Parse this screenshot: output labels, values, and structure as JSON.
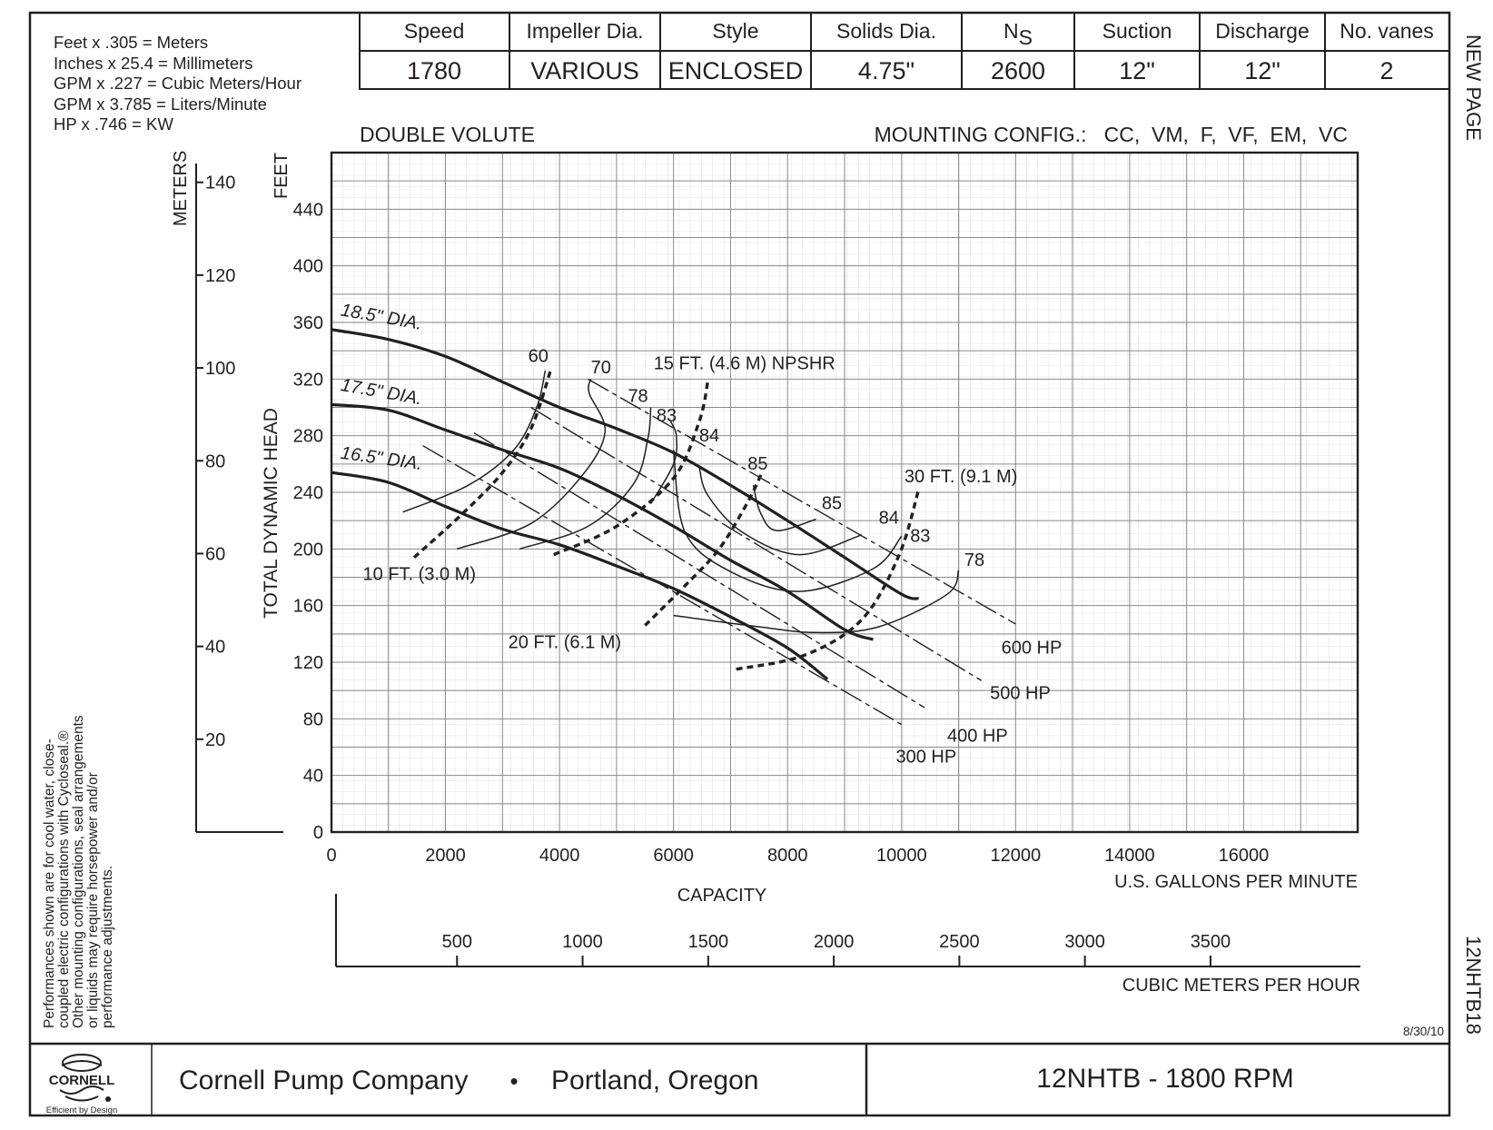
{
  "conversions": [
    "Feet x .305 = Meters",
    "Inches x 25.4 = Millimeters",
    "GPM x .227 = Cubic Meters/Hour",
    "GPM x 3.785 = Liters/Minute",
    "HP x .746 = KW"
  ],
  "spec_table": {
    "headers": [
      "Speed",
      "Impeller Dia.",
      "Style",
      "Solids Dia.",
      "N",
      "Suction",
      "Discharge",
      "No. vanes"
    ],
    "ns_subscript": "S",
    "values": [
      "1780",
      "VARIOUS",
      "ENCLOSED",
      "4.75\"",
      "2600",
      "12\"",
      "12\"",
      "2"
    ]
  },
  "side_label_top": "NEW PAGE",
  "side_label_bottom": "12NHTB18",
  "volute_label": "DOUBLE VOLUTE",
  "mounting_label": "MOUNTING CONFIG.:   CC,  VM,  F,  VF,  EM,  VC",
  "disclaimer": [
    "Performances shown are for cool water, close-",
    "coupled electric configurations with Cycloseal.®",
    "Other mounting configurations, seal arrangements",
    "or liquids may require horsepower and/or",
    "performance adjustments."
  ],
  "date": "8/30/10",
  "footer": {
    "logo_text": "CORNELL",
    "tagline": "Efficient by Design",
    "company": "Cornell Pump Company",
    "bullet": "•",
    "location": "Portland, Oregon",
    "model": "12NHTB - 1800 RPM"
  },
  "chart_data": {
    "type": "line",
    "title": "",
    "xlabel": "CAPACITY",
    "x_units": "U.S. GALLONS PER MINUTE",
    "ylabel": "TOTAL DYNAMIC HEAD",
    "y_units": "FEET",
    "secondary_y_units": "METERS",
    "secondary_x_units": "CUBIC METERS PER HOUR",
    "xlim": [
      0,
      18000
    ],
    "ylim": [
      0,
      480
    ],
    "x_ticks": [
      0,
      2000,
      4000,
      6000,
      8000,
      10000,
      12000,
      14000,
      16000
    ],
    "y_ticks": [
      0,
      40,
      80,
      120,
      160,
      200,
      240,
      280,
      320,
      360,
      400,
      440
    ],
    "meters_ticks": [
      20,
      40,
      60,
      80,
      100,
      120,
      140
    ],
    "m3h_ticks": [
      500,
      1000,
      1500,
      2000,
      2500,
      3000,
      3500
    ],
    "grid": true,
    "series": [
      {
        "name": "18.5\" DIA.",
        "kind": "head",
        "x": [
          0,
          1000,
          2000,
          3000,
          4000,
          5000,
          6000,
          7000,
          8000,
          9000,
          10000,
          10300
        ],
        "y": [
          355,
          348,
          336,
          318,
          300,
          285,
          268,
          245,
          220,
          194,
          168,
          165
        ]
      },
      {
        "name": "17.5\" DIA.",
        "kind": "head",
        "x": [
          0,
          1000,
          2000,
          3000,
          4000,
          5000,
          6000,
          7000,
          8000,
          9000,
          9500
        ],
        "y": [
          302,
          298,
          284,
          270,
          257,
          238,
          216,
          192,
          170,
          143,
          136
        ]
      },
      {
        "name": "16.5\" DIA.",
        "kind": "head",
        "x": [
          0,
          1000,
          2000,
          3000,
          4000,
          5000,
          6000,
          7000,
          8000,
          8700
        ],
        "y": [
          254,
          247,
          230,
          214,
          203,
          188,
          172,
          152,
          130,
          108
        ]
      },
      {
        "name": "60",
        "kind": "efficiency",
        "x": [
          1250,
          2400,
          3200,
          3600,
          3750
        ],
        "y": [
          226,
          245,
          270,
          300,
          326
        ]
      },
      {
        "name": "70",
        "kind": "efficiency",
        "x": [
          2200,
          3500,
          4400,
          4800,
          4520,
          4550
        ],
        "y": [
          200,
          218,
          252,
          283,
          310,
          320
        ]
      },
      {
        "name": "78",
        "kind": "efficiency",
        "x": [
          3300,
          4500,
          5300,
          5550,
          5600
        ],
        "y": [
          200,
          216,
          246,
          278,
          300
        ]
      },
      {
        "name": "83",
        "kind": "efficiency",
        "x": [
          5600,
          6000,
          6050,
          5950
        ],
        "y": [
          232,
          260,
          280,
          290
        ]
      },
      {
        "name": "84",
        "kind": "efficiency",
        "x": [
          6450,
          6600,
          7200,
          8200,
          9300
        ],
        "y": [
          258,
          238,
          212,
          196,
          210
        ]
      },
      {
        "name": "85",
        "kind": "efficiency",
        "x": [
          7400,
          7520,
          7800,
          8500
        ],
        "y": [
          245,
          226,
          213,
          221
        ]
      },
      {
        "name": "83",
        "kind": "efficiency",
        "x": [
          6000,
          6200,
          7000,
          8200,
          9500,
          10000
        ],
        "y": [
          270,
          212,
          184,
          170,
          186,
          209
        ]
      },
      {
        "name": "78",
        "kind": "efficiency",
        "x": [
          6000,
          7500,
          8500,
          9600,
          10800,
          11000
        ],
        "y": [
          153,
          145,
          141,
          145,
          168,
          185
        ]
      },
      {
        "name": "10 FT. (3.0 M)",
        "kind": "npshr",
        "x": [
          1450,
          2300,
          3000,
          3500,
          3850
        ],
        "y": [
          194,
          225,
          254,
          285,
          327
        ]
      },
      {
        "name": "15 FT. (4.6 M) NPSHR",
        "kind": "npshr",
        "x": [
          3900,
          5000,
          6000,
          6450,
          6600
        ],
        "y": [
          196,
          216,
          250,
          290,
          318
        ]
      },
      {
        "name": "20 FT. (6.1 M)",
        "kind": "npshr",
        "x": [
          5500,
          6200,
          6800,
          7300,
          7550
        ],
        "y": [
          146,
          174,
          200,
          233,
          254
        ]
      },
      {
        "name": "30 FT. (9.1 M)",
        "kind": "npshr",
        "x": [
          7100,
          8300,
          9300,
          9950,
          10300
        ],
        "y": [
          115,
          125,
          150,
          195,
          242
        ]
      },
      {
        "name": "300 HP",
        "kind": "horsepower",
        "x": [
          1600,
          10000
        ],
        "y": [
          273,
          76
        ]
      },
      {
        "name": "400 HP",
        "kind": "horsepower",
        "x": [
          2500,
          10400
        ],
        "y": [
          282,
          88
        ]
      },
      {
        "name": "500 HP",
        "kind": "horsepower",
        "x": [
          3500,
          11400
        ],
        "y": [
          300,
          107
        ]
      },
      {
        "name": "600 HP",
        "kind": "horsepower",
        "x": [
          4500,
          12000
        ],
        "y": [
          320,
          147
        ]
      }
    ],
    "labels": [
      {
        "text": "18.5\" DIA.",
        "x": 150,
        "y": 365,
        "rotate": 10
      },
      {
        "text": "17.5\" DIA.",
        "x": 150,
        "y": 312,
        "rotate": 10
      },
      {
        "text": "16.5\" DIA.",
        "x": 150,
        "y": 264,
        "rotate": 8
      },
      {
        "text": "60",
        "x": 3450,
        "y": 332,
        "rotate": 0
      },
      {
        "text": "70",
        "x": 4550,
        "y": 324,
        "rotate": 0
      },
      {
        "text": "78",
        "x": 5200,
        "y": 304,
        "rotate": 0
      },
      {
        "text": "83",
        "x": 5700,
        "y": 290,
        "rotate": 0
      },
      {
        "text": "84",
        "x": 6450,
        "y": 276,
        "rotate": 0
      },
      {
        "text": "85",
        "x": 7300,
        "y": 256,
        "rotate": 0
      },
      {
        "text": "85",
        "x": 8600,
        "y": 228,
        "rotate": 0
      },
      {
        "text": "84",
        "x": 9600,
        "y": 218,
        "rotate": 0
      },
      {
        "text": "83",
        "x": 10150,
        "y": 205,
        "rotate": 0
      },
      {
        "text": "78",
        "x": 11100,
        "y": 188,
        "rotate": 0
      },
      {
        "text": "10 FT. (3.0 M)",
        "x": 550,
        "y": 178,
        "rotate": 0
      },
      {
        "text": "15 FT. (4.6 M) NPSHR",
        "x": 5650,
        "y": 327,
        "rotate": 0
      },
      {
        "text": "20 FT. (6.1 M)",
        "x": 3100,
        "y": 130,
        "rotate": 0
      },
      {
        "text": "30 FT. (9.1 M)",
        "x": 10050,
        "y": 247,
        "rotate": 0
      },
      {
        "text": "600 HP",
        "x": 11750,
        "y": 126,
        "rotate": 0
      },
      {
        "text": "500 HP",
        "x": 11550,
        "y": 94,
        "rotate": 0
      },
      {
        "text": "400 HP",
        "x": 10800,
        "y": 64,
        "rotate": 0
      },
      {
        "text": "300 HP",
        "x": 9900,
        "y": 49,
        "rotate": 0
      }
    ]
  }
}
